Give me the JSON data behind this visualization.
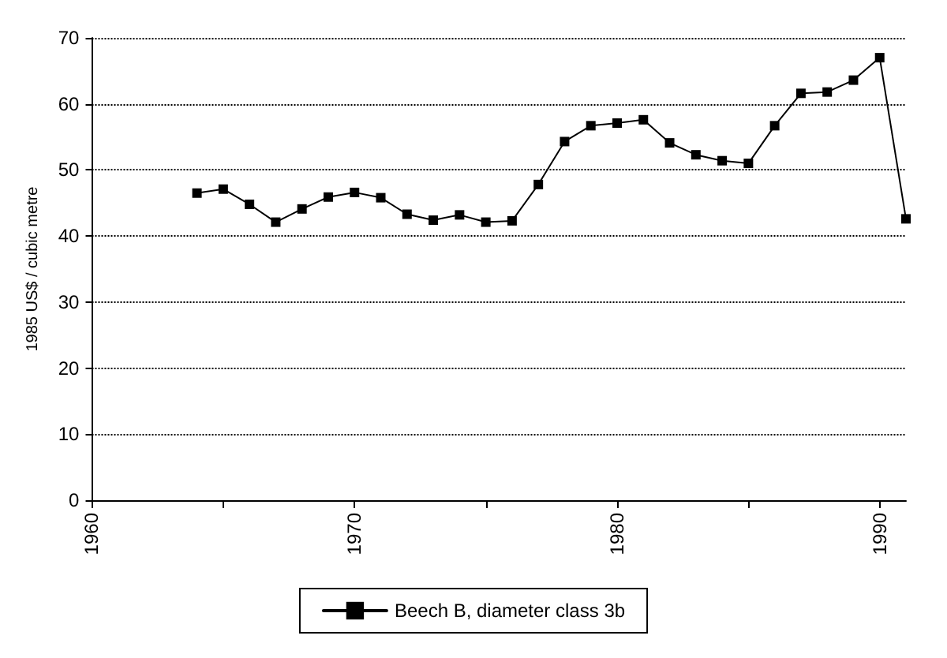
{
  "chart_data": {
    "type": "line",
    "ylabel": "1985 US$ / cubic metre",
    "x": [
      1964,
      1965,
      1966,
      1967,
      1968,
      1969,
      1970,
      1971,
      1972,
      1973,
      1974,
      1975,
      1976,
      1977,
      1978,
      1979,
      1980,
      1981,
      1982,
      1983,
      1984,
      1985,
      1986,
      1987,
      1988,
      1989,
      1990,
      1991
    ],
    "series": [
      {
        "name": "Beech B, diameter class 3b",
        "color": "#000000",
        "values": [
          46.5,
          47.1,
          44.8,
          42.1,
          44.1,
          45.9,
          46.6,
          45.8,
          43.3,
          42.4,
          43.2,
          42.1,
          42.3,
          47.8,
          54.3,
          56.7,
          57.1,
          57.6,
          54.1,
          52.3,
          51.4,
          51.0,
          56.7,
          61.6,
          61.8,
          63.6,
          67.0,
          42.6
        ]
      }
    ],
    "xlim": [
      1960,
      1991
    ],
    "xticks": [
      1960,
      {
        "value": 1965,
        "label": null
      },
      1970,
      {
        "value": 1975,
        "label": null
      },
      1980,
      {
        "value": 1985,
        "label": null
      },
      1990
    ],
    "ylim": [
      0,
      70
    ],
    "yticks": [
      0,
      10,
      20,
      30,
      40,
      50,
      60,
      70
    ],
    "grid": "y",
    "legend": "bottom",
    "marker": "square",
    "line_style": "solid"
  }
}
